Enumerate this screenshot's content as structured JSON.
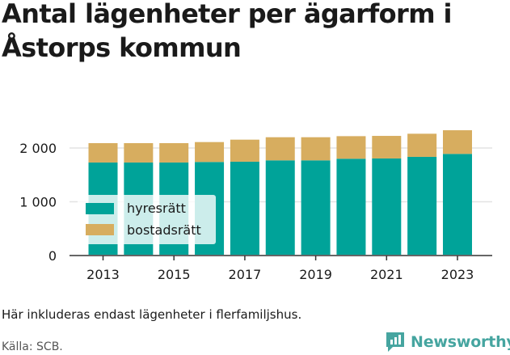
{
  "title": "Antal lägenheter per ägarform i Åstorps kommun",
  "note": "Här inkluderas endast lägenheter i flerfamiljshus.",
  "source": "Källa: SCB.",
  "brand": "Newsworthy",
  "colors": {
    "hyresratt": "#00a399",
    "bostadsratt": "#d7ad5f",
    "brand": "#46a5a0",
    "grid": "#e3e3e3"
  },
  "chart_data": {
    "type": "bar",
    "stacked": true,
    "x": [
      2013,
      2014,
      2015,
      2016,
      2017,
      2018,
      2019,
      2020,
      2021,
      2022,
      2023
    ],
    "x_tick_labels": [
      "2013",
      "2015",
      "2017",
      "2019",
      "2021",
      "2023"
    ],
    "y_ticks": [
      0,
      1000,
      2000
    ],
    "y_tick_labels": [
      "0",
      "1 000",
      "2 000"
    ],
    "ylim": [
      0,
      2500
    ],
    "grid": true,
    "legend_position": "bottom-left",
    "series": [
      {
        "name": "hyresrätt",
        "values": [
          1730,
          1730,
          1730,
          1740,
          1745,
          1770,
          1770,
          1800,
          1805,
          1835,
          1890
        ]
      },
      {
        "name": "bostadsrätt",
        "values": [
          360,
          360,
          360,
          370,
          410,
          430,
          430,
          420,
          420,
          430,
          440
        ]
      }
    ]
  }
}
